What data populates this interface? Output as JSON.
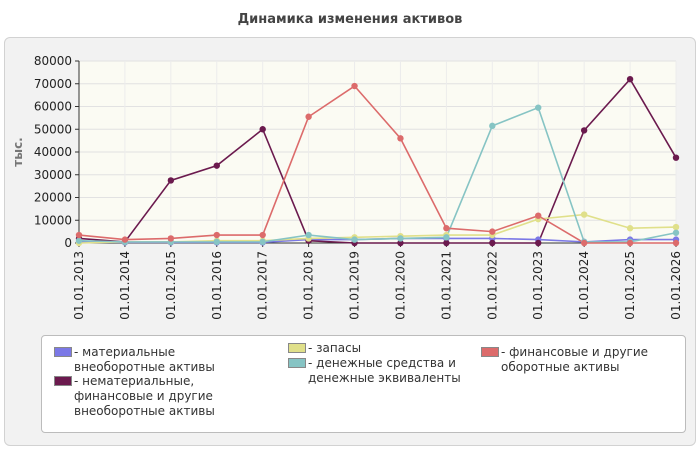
{
  "title": "Динамика изменения активов",
  "chart_data": {
    "type": "line",
    "title": "Динамика изменения активов",
    "ylabel": "тыс.",
    "xlabel": "",
    "ylim": [
      0,
      80000
    ],
    "yticks": [
      0,
      10000,
      20000,
      30000,
      40000,
      50000,
      60000,
      70000,
      80000
    ],
    "grid": true,
    "legend_position": "bottom",
    "categories": [
      "01.01.2013",
      "01.01.2014",
      "01.01.2015",
      "01.01.2016",
      "01.01.2017",
      "01.01.2018",
      "01.01.2019",
      "01.01.2020",
      "01.01.2021",
      "01.01.2022",
      "01.01.2023",
      "01.01.2024",
      "01.01.2025",
      "01.01.2026"
    ],
    "series": [
      {
        "name": "- материальные внеоборотные активы",
        "color": "#7b78e6",
        "values": [
          500,
          300,
          300,
          300,
          300,
          1500,
          1500,
          2000,
          2000,
          2000,
          1500,
          500,
          1500,
          1500
        ]
      },
      {
        "name": "- нематериальные, финансовые и другие внеоборотные активы",
        "color": "#6b1a4e",
        "values": [
          2000,
          500,
          27500,
          34000,
          50000,
          1000,
          0,
          0,
          0,
          0,
          0,
          49500,
          72000,
          37500
        ]
      },
      {
        "name": "- запасы",
        "color": "#e0e08a",
        "values": [
          0,
          500,
          500,
          1000,
          1000,
          2000,
          2500,
          3000,
          3500,
          3500,
          10500,
          12500,
          6500,
          7000
        ]
      },
      {
        "name": "- денежные средства и денежные эквиваленты",
        "color": "#86c4c4",
        "values": [
          1000,
          500,
          500,
          500,
          500,
          3500,
          1500,
          2000,
          2500,
          51500,
          59500,
          500,
          500,
          4500
        ]
      },
      {
        "name": "- финансовые и другие оборотные активы",
        "color": "#dc6b6b",
        "values": [
          3500,
          1500,
          2000,
          3500,
          3500,
          55500,
          69000,
          46000,
          6500,
          5000,
          12000,
          0,
          0,
          0
        ]
      }
    ]
  }
}
